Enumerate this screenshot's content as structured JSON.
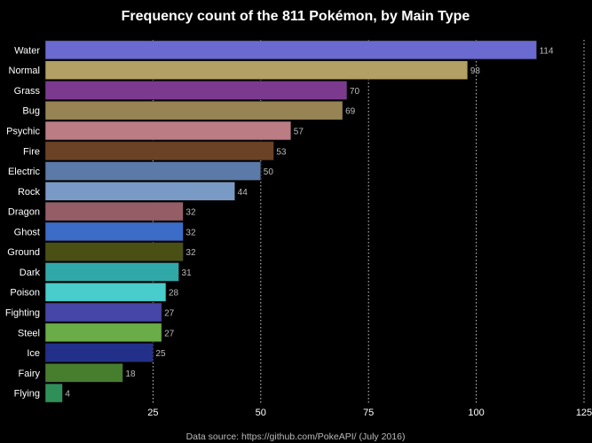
{
  "chart_data": {
    "type": "bar",
    "orientation": "horizontal",
    "title": "Frequency count of the 811 Pokémon, by Main Type",
    "source": "Data source: https://github.com/PokeAPI/ (July 2016)",
    "categories": [
      "Water",
      "Normal",
      "Grass",
      "Bug",
      "Psychic",
      "Fire",
      "Electric",
      "Rock",
      "Dragon",
      "Ghost",
      "Ground",
      "Dark",
      "Poison",
      "Fighting",
      "Steel",
      "Ice",
      "Fairy",
      "Flying"
    ],
    "values": [
      114,
      98,
      70,
      69,
      57,
      53,
      50,
      44,
      32,
      32,
      32,
      31,
      28,
      27,
      27,
      25,
      18,
      4
    ],
    "colors": [
      "#6a6ad0",
      "#b2a064",
      "#7b3a8e",
      "#978455",
      "#bc7c84",
      "#6b4226",
      "#5c7aa8",
      "#7a9ac6",
      "#955e66",
      "#3a6cc8",
      "#4a5014",
      "#30a8a8",
      "#48cccc",
      "#4646a8",
      "#6aac48",
      "#22308a",
      "#467e2e",
      "#2e9058"
    ],
    "xlim": [
      0,
      125
    ],
    "xticks": [
      25,
      50,
      75,
      100,
      125
    ],
    "grid": true,
    "data_labels": true
  }
}
